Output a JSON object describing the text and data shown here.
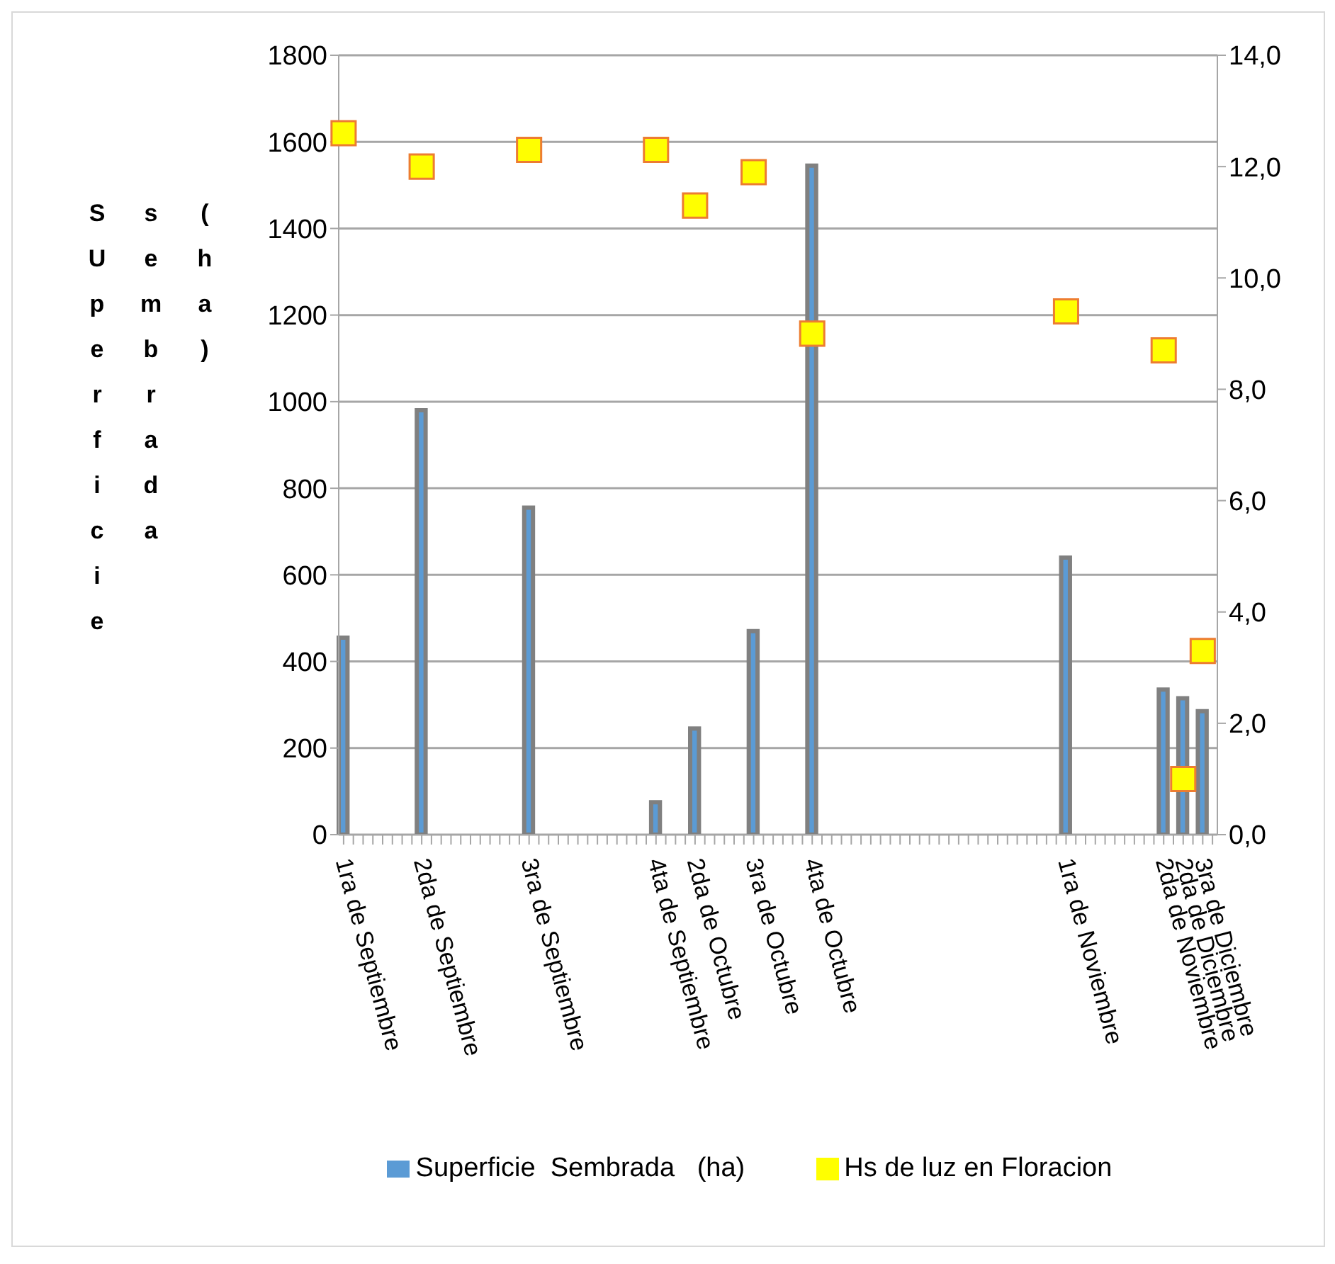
{
  "chart_data": {
    "type": "bar",
    "ylabel": "SUperficie sembrada (ha)",
    "categories": [
      "1ra de Septiembre",
      null,
      null,
      null,
      null,
      null,
      null,
      null,
      "2da de Septiembre",
      null,
      null,
      null,
      null,
      null,
      null,
      null,
      null,
      null,
      null,
      "3ra de Septiembre",
      null,
      null,
      null,
      null,
      null,
      null,
      null,
      null,
      null,
      null,
      null,
      null,
      "4ta de Septiembre",
      null,
      null,
      null,
      "2da de Octubre",
      null,
      null,
      null,
      null,
      null,
      "3ra de Octubre",
      null,
      null,
      null,
      null,
      null,
      "4ta de Octubre",
      null,
      null,
      null,
      null,
      null,
      null,
      null,
      null,
      null,
      null,
      null,
      null,
      null,
      null,
      null,
      null,
      null,
      null,
      null,
      null,
      null,
      null,
      null,
      null,
      null,
      "1ra de Noviembre",
      null,
      null,
      null,
      null,
      null,
      null,
      null,
      null,
      null,
      "2da de Noviembre",
      null,
      "2da de Diciembre",
      null,
      "3ra de Diciembre",
      null
    ],
    "series": [
      {
        "name": "Superficie  Sembrada   (ha)",
        "color": "#5b9bd5",
        "values": [
          455,
          null,
          null,
          null,
          null,
          null,
          null,
          null,
          980,
          null,
          null,
          null,
          null,
          null,
          null,
          null,
          null,
          null,
          null,
          755,
          null,
          null,
          null,
          null,
          null,
          null,
          null,
          null,
          null,
          null,
          null,
          null,
          75,
          null,
          null,
          null,
          245,
          null,
          null,
          null,
          null,
          null,
          470,
          null,
          null,
          null,
          null,
          null,
          1545,
          null,
          null,
          null,
          null,
          null,
          null,
          null,
          null,
          null,
          null,
          null,
          null,
          null,
          null,
          null,
          null,
          null,
          null,
          null,
          null,
          null,
          null,
          null,
          null,
          null,
          640,
          null,
          null,
          null,
          null,
          null,
          null,
          null,
          null,
          null,
          335,
          null,
          315,
          null,
          285,
          null
        ]
      },
      {
        "name": "Hs de luz en Floracion",
        "type": "scatter",
        "axis": "y2",
        "color": "#ffff00",
        "values": [
          12.6,
          null,
          null,
          null,
          null,
          null,
          null,
          null,
          12.0,
          null,
          null,
          null,
          null,
          null,
          null,
          null,
          null,
          null,
          null,
          12.3,
          null,
          null,
          null,
          null,
          null,
          null,
          null,
          null,
          null,
          null,
          null,
          null,
          12.3,
          null,
          null,
          null,
          11.3,
          null,
          null,
          null,
          null,
          null,
          11.9,
          null,
          null,
          null,
          null,
          null,
          9.0,
          null,
          null,
          null,
          null,
          null,
          null,
          null,
          null,
          null,
          null,
          null,
          null,
          null,
          null,
          null,
          null,
          null,
          null,
          null,
          null,
          null,
          null,
          null,
          null,
          null,
          9.4,
          null,
          null,
          null,
          null,
          null,
          null,
          null,
          null,
          null,
          8.7,
          null,
          1.0,
          null,
          3.3,
          null
        ]
      }
    ],
    "ylim": [
      0,
      1800
    ],
    "yticks": [
      0,
      200,
      400,
      600,
      800,
      1000,
      1200,
      1400,
      1600,
      1800
    ],
    "y2lim": [
      0,
      14
    ],
    "y2ticks": [
      {
        "value": 0,
        "label": "0,0"
      },
      {
        "value": 2,
        "label": "2,0"
      },
      {
        "value": 4,
        "label": "4,0"
      },
      {
        "value": 6,
        "label": "6,0"
      },
      {
        "value": 8,
        "label": "8,0"
      },
      {
        "value": 10,
        "label": "10,0"
      },
      {
        "value": 12,
        "label": "12,0"
      },
      {
        "value": 14,
        "label": "14,0"
      }
    ],
    "grid": "y",
    "legend": "bottom",
    "marker": "square"
  }
}
